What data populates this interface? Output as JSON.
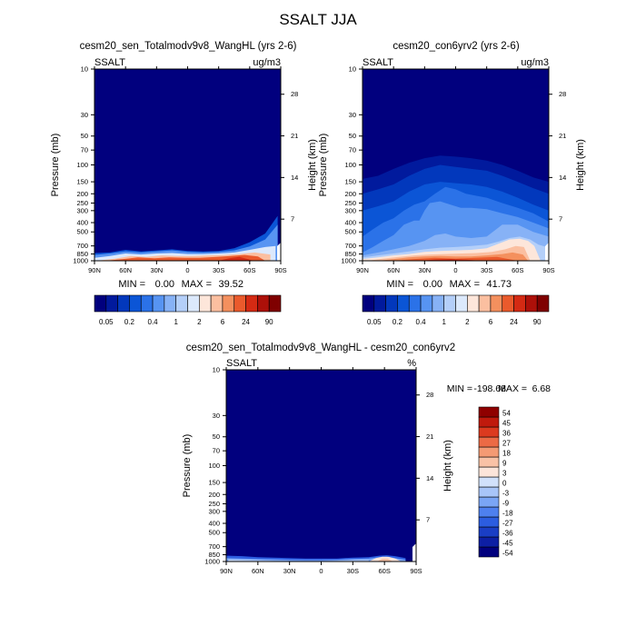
{
  "figure": {
    "title": "SSALT JJA"
  },
  "palettes": {
    "abs": [
      "#01007e",
      "#011a9d",
      "#0238bc",
      "#0b55d6",
      "#2b72e8",
      "#5794f2",
      "#87b2f6",
      "#b4cff9",
      "#dce9fc",
      "#fde6da",
      "#fbbfa0",
      "#f4905e",
      "#ea5a2c",
      "#d42a13",
      "#ad1009",
      "#7f0000"
    ],
    "diff": [
      "#01007e",
      "#0d1fa4",
      "#1a3ec5",
      "#2c5de0",
      "#4e80ef",
      "#7aa5f5",
      "#a8c5f8",
      "#d1e1fb",
      "#fce5da",
      "#f9c2a6",
      "#f49a74",
      "#ec6a45",
      "#dc3a1f",
      "#c01a0d",
      "#8f0000"
    ]
  },
  "panels": {
    "p1": {
      "title": "cesm20_sen_Totalmodv9v8_WangHL (yrs 2-6)",
      "var_label": "SSALT",
      "units": "ug/m3",
      "min_label": "MIN =",
      "min_value": "0.00",
      "max_label": "MAX =",
      "max_value": "39.52",
      "ylabel": "Pressure (mb)",
      "ylabel_right": "Height (km)",
      "colorbar_labels": [
        "0.05",
        "0.2",
        "0.4",
        "1",
        "2",
        "6",
        "24",
        "90"
      ]
    },
    "p2": {
      "title": "cesm20_con6yrv2 (yrs 2-6)",
      "var_label": "SSALT",
      "units": "ug/m3",
      "min_label": "MIN =",
      "min_value": "0.00",
      "max_label": "MAX =",
      "max_value": "41.73",
      "ylabel": "Pressure (mb)",
      "ylabel_right": "Height (km)",
      "colorbar_labels": [
        "0.05",
        "0.2",
        "0.4",
        "1",
        "2",
        "6",
        "24",
        "90"
      ]
    },
    "p3": {
      "title": "cesm20_sen_Totalmodv9v8_WangHL - cesm20_con6yrv2",
      "var_label": "SSALT",
      "units": "%",
      "min_label": "MIN =",
      "min_value": "-198.68",
      "max_label": "MAX =",
      "max_value": "6.68",
      "ylabel": "Pressure (mb)",
      "ylabel_right": "Height (km)",
      "colorbar_labels": [
        "54",
        "45",
        "36",
        "27",
        "18",
        "9",
        "3",
        "0",
        "-3",
        "-9",
        "-18",
        "-27",
        "-36",
        "-45",
        "-54"
      ]
    }
  },
  "chart_data": [
    {
      "type": "heatmap",
      "panel": "p1",
      "title": "cesm20_sen_Totalmodv9v8_WangHL (yrs 2-6)",
      "variable": "SSALT",
      "units": "ug/m3",
      "xlabel": "",
      "ylabel": "Pressure (mb)",
      "ylabel_right": "Height (km)",
      "x_ticks": [
        "90N",
        "60N",
        "30N",
        "0",
        "30S",
        "60S",
        "90S"
      ],
      "y_ticks": [
        10,
        30,
        50,
        70,
        100,
        150,
        200,
        250,
        300,
        400,
        500,
        700,
        850,
        1000
      ],
      "y_scale": "log",
      "ylim": [
        1000,
        10
      ],
      "height_ticks_km": [
        7,
        14,
        21,
        28
      ],
      "levels": [
        0.05,
        0.1,
        0.2,
        0.3,
        0.4,
        0.6,
        1,
        1.5,
        2,
        4,
        6,
        12,
        24,
        48,
        90
      ],
      "min": 0.0,
      "max": 39.52,
      "surface_layers": [
        {
          "x": [
            -90,
            -75,
            -60,
            -45,
            -30,
            -15,
            0,
            15,
            30,
            45,
            60,
            75,
            87
          ],
          "p": [
            830,
            820,
            770,
            800,
            780,
            760,
            790,
            800,
            790,
            740,
            640,
            520,
            340
          ],
          "color": "#0b55d6"
        },
        {
          "x": [
            -90,
            -75,
            -60,
            -45,
            -30,
            -15,
            0,
            15,
            30,
            45,
            60,
            75,
            87
          ],
          "p": [
            870,
            840,
            800,
            820,
            800,
            780,
            810,
            820,
            810,
            780,
            710,
            600,
            420
          ],
          "color": "#5794f2"
        },
        {
          "x": [
            -90,
            -75,
            -60,
            -45,
            -30,
            -15,
            0,
            15,
            30,
            45,
            60,
            75,
            85
          ],
          "p": [
            930,
            890,
            840,
            860,
            840,
            830,
            850,
            850,
            840,
            820,
            770,
            720,
            700
          ],
          "color": "#dce9fc"
        },
        {
          "x": [
            -88,
            -70,
            -55,
            -40,
            -25,
            -10,
            5,
            20,
            35,
            50,
            65,
            80
          ],
          "p": [
            1000,
            950,
            890,
            910,
            880,
            890,
            890,
            880,
            870,
            850,
            820,
            860
          ],
          "color": "#fbbfa0"
        },
        {
          "x": [
            -80,
            -62,
            -48,
            -32,
            -18,
            -3,
            12,
            28,
            42,
            55,
            68,
            75
          ],
          "p": [
            1000,
            960,
            920,
            940,
            920,
            930,
            930,
            910,
            890,
            870,
            900,
            1000
          ],
          "color": "#ea5a2c"
        },
        {
          "x": [
            30,
            40,
            50,
            58,
            64
          ],
          "p": [
            1000,
            940,
            910,
            960,
            1000
          ],
          "color": "#d42a13"
        }
      ]
    },
    {
      "type": "heatmap",
      "panel": "p2",
      "title": "cesm20_con6yrv2 (yrs 2-6)",
      "variable": "SSALT",
      "units": "ug/m3",
      "xlabel": "",
      "ylabel": "Pressure (mb)",
      "ylabel_right": "Height (km)",
      "x_ticks": [
        "90N",
        "60N",
        "30N",
        "0",
        "30S",
        "60S",
        "90S"
      ],
      "y_ticks": [
        10,
        30,
        50,
        70,
        100,
        150,
        200,
        250,
        300,
        400,
        500,
        700,
        850,
        1000
      ],
      "y_scale": "log",
      "ylim": [
        1000,
        10
      ],
      "height_ticks_km": [
        7,
        14,
        21,
        28
      ],
      "levels": [
        0.05,
        0.1,
        0.2,
        0.3,
        0.4,
        0.6,
        1,
        1.5,
        2,
        4,
        6,
        12,
        24,
        48,
        90
      ],
      "min": 0.0,
      "max": 41.73,
      "surface_layers": [
        {
          "x": [
            -90,
            -75,
            -60,
            -45,
            -30,
            -15,
            0,
            15,
            30,
            45,
            60,
            75,
            90
          ],
          "p": [
            140,
            130,
            110,
            95,
            85,
            80,
            82,
            85,
            90,
            100,
            115,
            135,
            150
          ],
          "color": "#011a9d"
        },
        {
          "x": [
            -90,
            -75,
            -60,
            -45,
            -30,
            -15,
            0,
            15,
            30,
            45,
            60,
            75,
            90
          ],
          "p": [
            200,
            180,
            160,
            130,
            110,
            100,
            105,
            110,
            115,
            130,
            150,
            175,
            200
          ],
          "color": "#0238bc"
        },
        {
          "x": [
            -90,
            -75,
            -60,
            -45,
            -30,
            -15,
            0,
            15,
            30,
            45,
            60,
            75,
            90
          ],
          "p": [
            300,
            270,
            240,
            190,
            160,
            150,
            155,
            160,
            170,
            190,
            220,
            260,
            300
          ],
          "color": "#0b55d6"
        },
        {
          "x": [
            -90,
            -80,
            -70,
            -60,
            -50,
            -40,
            -30,
            -20,
            -10,
            0,
            10,
            20,
            30,
            45,
            60,
            75,
            90
          ],
          "p": [
            560,
            470,
            400,
            360,
            300,
            260,
            240,
            200,
            170,
            180,
            200,
            210,
            220,
            250,
            280,
            320,
            390
          ],
          "color": "#2b72e8"
        },
        {
          "x": [
            -90,
            -80,
            -70,
            -60,
            -50,
            -40,
            -35,
            -30,
            -25,
            -15,
            -5,
            5,
            15,
            30,
            45,
            60,
            75,
            90
          ],
          "p": [
            820,
            720,
            620,
            540,
            420,
            380,
            380,
            300,
            250,
            240,
            260,
            280,
            280,
            290,
            320,
            350,
            400,
            460
          ],
          "color": "#5794f2"
        },
        {
          "x": [
            -90,
            -75,
            -60,
            -45,
            -30,
            -20,
            -10,
            0,
            15,
            30,
            45,
            60,
            75,
            90
          ],
          "p": [
            880,
            820,
            760,
            700,
            620,
            540,
            520,
            560,
            580,
            560,
            420,
            420,
            500,
            560
          ],
          "color": "#87b2f6"
        },
        {
          "x": [
            -90,
            -75,
            -60,
            -45,
            -30,
            -15,
            0,
            15,
            30,
            42,
            52,
            62,
            72,
            80,
            88
          ],
          "p": [
            920,
            880,
            840,
            800,
            760,
            730,
            720,
            700,
            680,
            630,
            580,
            560,
            600,
            680,
            720
          ],
          "color": "#b4cff9"
        },
        {
          "x": [
            -90,
            -75,
            -60,
            -45,
            -30,
            -15,
            0,
            15,
            30,
            42,
            52,
            62,
            70,
            76,
            82
          ],
          "p": [
            960,
            920,
            880,
            850,
            810,
            790,
            780,
            770,
            740,
            660,
            600,
            590,
            620,
            700,
            1000
          ],
          "color": "#fde6da"
        },
        {
          "x": [
            -85,
            -70,
            -55,
            -40,
            -25,
            -10,
            5,
            20,
            35,
            48,
            58,
            66,
            72
          ],
          "p": [
            1000,
            950,
            910,
            880,
            860,
            850,
            840,
            830,
            810,
            760,
            700,
            720,
            1000
          ],
          "color": "#fbbfa0"
        },
        {
          "x": [
            -75,
            -60,
            -45,
            -30,
            -15,
            0,
            15,
            30,
            45,
            55,
            65,
            70
          ],
          "p": [
            1000,
            960,
            920,
            900,
            890,
            900,
            900,
            880,
            850,
            820,
            860,
            1000
          ],
          "color": "#f4905e"
        },
        {
          "x": [
            -60,
            -40,
            -20,
            0,
            20,
            40,
            60
          ],
          "p": [
            1000,
            960,
            930,
            950,
            930,
            910,
            1000
          ],
          "color": "#ea5a2c"
        },
        {
          "x": [
            -35,
            -20,
            -5,
            10,
            25
          ],
          "p": [
            1000,
            970,
            960,
            975,
            1000
          ],
          "color": "#d42a13"
        }
      ]
    },
    {
      "type": "heatmap",
      "panel": "p3",
      "title": "cesm20_sen_Totalmodv9v8_WangHL - cesm20_con6yrv2",
      "variable": "SSALT",
      "units": "%",
      "xlabel": "",
      "ylabel": "Pressure (mb)",
      "ylabel_right": "Height (km)",
      "x_ticks": [
        "90N",
        "60N",
        "30N",
        "0",
        "30S",
        "60S",
        "90S"
      ],
      "y_ticks": [
        10,
        30,
        50,
        70,
        100,
        150,
        200,
        250,
        300,
        400,
        500,
        700,
        850,
        1000
      ],
      "y_scale": "log",
      "ylim": [
        1000,
        10
      ],
      "height_ticks_km": [
        7,
        14,
        21,
        28
      ],
      "levels": [
        -54,
        -45,
        -36,
        -27,
        -18,
        -9,
        -3,
        0,
        3,
        9,
        18,
        27,
        36,
        45,
        54
      ],
      "min": -198.68,
      "max": 6.68,
      "surface_layers": [
        {
          "x": [
            -90,
            -75,
            -60,
            -45,
            -30,
            -15,
            0,
            15,
            30,
            45,
            55,
            62,
            70,
            80
          ],
          "p": [
            870,
            880,
            900,
            910,
            920,
            930,
            930,
            930,
            910,
            900,
            870,
            860,
            880,
            920
          ],
          "color": "#2c5de0"
        },
        {
          "x": [
            -90,
            -75,
            -60,
            -45,
            -30,
            -15,
            0,
            15,
            30,
            45,
            55,
            62,
            70,
            80
          ],
          "p": [
            920,
            930,
            940,
            950,
            960,
            965,
            965,
            960,
            940,
            930,
            900,
            890,
            920,
            960
          ],
          "color": "#7aa5f5"
        },
        {
          "x": [
            -88,
            -75,
            -60,
            -45,
            -30,
            -15,
            0,
            15,
            30,
            45
          ],
          "p": [
            960,
            965,
            975,
            985,
            990,
            990,
            990,
            985,
            975,
            970
          ],
          "color": "#d1e1fb"
        },
        {
          "x": [
            45,
            52,
            58,
            64,
            70,
            76
          ],
          "p": [
            1000,
            920,
            890,
            895,
            930,
            1000
          ],
          "color": "#fce5da"
        },
        {
          "x": [
            53,
            58,
            63,
            68
          ],
          "p": [
            1000,
            935,
            935,
            1000
          ],
          "color": "#f9c2a6"
        }
      ]
    }
  ]
}
